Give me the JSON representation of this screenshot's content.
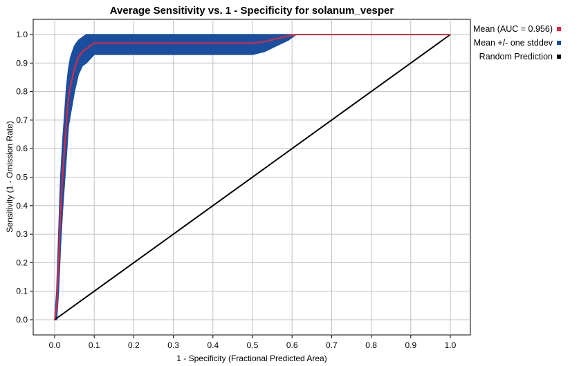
{
  "chart_data": {
    "type": "line",
    "title": "Average Sensitivity vs. 1 - Specificity for solanum_vesper",
    "xlabel": "1 - Specificity (Fractional Predicted Area)",
    "ylabel": "Sensitivity (1 - Omission Rate)",
    "xlim": [
      0,
      1
    ],
    "ylim": [
      0,
      1
    ],
    "x_ticks": [
      "0.0",
      "0.1",
      "0.2",
      "0.3",
      "0.4",
      "0.5",
      "0.6",
      "0.7",
      "0.8",
      "0.9",
      "1.0"
    ],
    "y_ticks": [
      "0.0",
      "0.1",
      "0.2",
      "0.3",
      "0.4",
      "0.5",
      "0.6",
      "0.7",
      "0.8",
      "0.9",
      "1.0"
    ],
    "grid": true,
    "legend_position": "right",
    "colors": {
      "mean": "#e8253a",
      "band": "#1a4fa0",
      "random": "#000000",
      "grid": "#c0c0c0"
    },
    "series": [
      {
        "name": "Mean (AUC = 0.956)",
        "x": [
          0.0,
          0.005,
          0.01,
          0.015,
          0.02,
          0.025,
          0.03,
          0.035,
          0.04,
          0.05,
          0.06,
          0.07,
          0.08,
          0.1,
          0.3,
          0.5,
          0.53,
          0.56,
          0.59,
          0.61,
          1.0
        ],
        "y": [
          0.0,
          0.05,
          0.2,
          0.38,
          0.5,
          0.6,
          0.7,
          0.78,
          0.82,
          0.88,
          0.92,
          0.94,
          0.95,
          0.97,
          0.97,
          0.97,
          0.975,
          0.985,
          0.995,
          1.0,
          1.0
        ]
      },
      {
        "name": "Mean +/- one stddev",
        "x": [
          0.0,
          0.005,
          0.01,
          0.015,
          0.02,
          0.025,
          0.03,
          0.035,
          0.04,
          0.05,
          0.06,
          0.07,
          0.08,
          0.1,
          0.3,
          0.5,
          0.53,
          0.56,
          0.59,
          0.61,
          1.0
        ],
        "upper": [
          0.0,
          0.1,
          0.3,
          0.5,
          0.62,
          0.72,
          0.82,
          0.88,
          0.92,
          0.96,
          0.98,
          0.99,
          1.0,
          1.0,
          1.0,
          1.0,
          1.0,
          1.0,
          1.0,
          1.0,
          1.0
        ],
        "lower": [
          0.0,
          0.0,
          0.1,
          0.26,
          0.38,
          0.48,
          0.58,
          0.68,
          0.72,
          0.8,
          0.86,
          0.89,
          0.9,
          0.93,
          0.93,
          0.93,
          0.94,
          0.96,
          0.98,
          1.0,
          1.0
        ]
      },
      {
        "name": "Random Prediction",
        "x": [
          0.0,
          1.0
        ],
        "y": [
          0.0,
          1.0
        ]
      }
    ]
  }
}
